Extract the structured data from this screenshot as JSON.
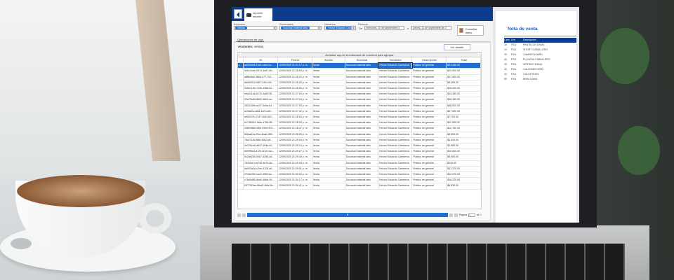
{
  "header": {
    "print_tab": "Imprimir reporte"
  },
  "filters": {
    "acciones": {
      "label": "Acciones",
      "chip": "Ventas"
    },
    "sucursales": {
      "label": "Sucursales",
      "chip": "Sucursal material labs"
    },
    "usuarios": {
      "label": "Usuarios",
      "chip": "Héctor Eduardo Cam"
    },
    "periodo": {
      "label": "Periodo",
      "from_label": "De",
      "from": "miércoles, 10 de septiembre d",
      "to_label": "a",
      "to": "jueves, 11 de septiembre de 2"
    },
    "consult_button": "Consultar datos"
  },
  "tab": "Operaciones de caja",
  "actions_label": "Acciones:",
  "actions_value": "ventas",
  "detail_button": "Ver detalle",
  "group_hint": "Arrastrar aquí el encabezado de columna para agrupar",
  "columns": [
    "ID",
    "Fecha",
    "Acción",
    "Sucursal",
    "Vendedor",
    "Descripción",
    "Total"
  ],
  "rows": [
    [
      "ad530d6f-47a4-4aee-bc...",
      "12/09/2025 21:24:17 p. m.",
      "Venta",
      "Sucursal material labs",
      "Héctor Eduardo Camberos",
      "Público en general",
      "$23,645.00"
    ],
    [
      "0e612cee-0974-4e67-8d...",
      "12/09/2025 21:26:03 p. m.",
      "Venta",
      "Sucursal material labs",
      "Héctor Eduardo Camberos",
      "Público en general",
      "$22,500.00"
    ],
    [
      "a8f6c6a9-386d-4777-91...",
      "12/09/2025 21:26:22 p. m.",
      "Venta",
      "Sucursal material labs",
      "Héctor Eduardo Camberos",
      "Público en general",
      "$17,500.00"
    ],
    [
      "66e83310-b8f7-430c-b8...",
      "12/09/2025 21:26:33 p. m.",
      "Venta",
      "Sucursal material labs",
      "Héctor Eduardo Camberos",
      "Público en general",
      "$8,499.20"
    ],
    [
      "2e9e1150-7236-4386-9a...",
      "12/09/2025 21:26:50 p. m.",
      "Venta",
      "Sucursal material labs",
      "Héctor Eduardo Camberos",
      "Público en general",
      "$19,000.00"
    ],
    [
      "e6a411a6-6176-4a80-98...",
      "12/09/2025 21:27:04 p. m.",
      "Venta",
      "Sucursal material labs",
      "Héctor Eduardo Camberos",
      "Público en general",
      "$14,350.00"
    ],
    [
      "32a75c8d-8642-4b04-ae...",
      "12/09/2025 21:27:14 p. m.",
      "Venta",
      "Sucursal material labs",
      "Héctor Eduardo Camberos",
      "Público en general",
      "$16,450.00"
    ],
    [
      "2831449b-ac07-4c5a-b4...",
      "12/09/2025 21:27:33 p. m.",
      "Venta",
      "Sucursal material labs",
      "Héctor Eduardo Camberos",
      "Público en general",
      "$48,000.00"
    ],
    [
      "a19a62a-a6f8-4ef9-b80...",
      "12/09/2025 21:27:42 p. m.",
      "Venta",
      "Sucursal material labs",
      "Héctor Eduardo Camberos",
      "Público en general",
      "$17,000.00"
    ],
    [
      "a9002f7e-2347-4fd0-857...",
      "12/09/2025 21:28:03 p. m.",
      "Venta",
      "Sucursal material labs",
      "Héctor Eduardo Camberos",
      "Público en general",
      "$7,700.00"
    ],
    [
      "b1738444-1d6b-478b-86...",
      "12/09/2025 21:28:33 p. m.",
      "Venta",
      "Sucursal material labs",
      "Héctor Eduardo Camberos",
      "Público en general",
      "$11,550.00"
    ],
    [
      "208e0889-0f6e-49b9-872...",
      "12/09/2025 21:28:47 p. m.",
      "Venta",
      "Sucursal material labs",
      "Héctor Eduardo Camberos",
      "Público en general",
      "$12,780.00"
    ],
    [
      "f65ba81a-2f1a-4ba8-955...",
      "12/09/2025 21:28:55 p. m.",
      "Venta",
      "Sucursal material labs",
      "Héctor Eduardo Camberos",
      "Público en general",
      "$9,500.00"
    ],
    [
      "78a71140-f66f-4062-b8...",
      "12/09/2025 21:29:04 p. m.",
      "Venta",
      "Sucursal material labs",
      "Héctor Eduardo Camberos",
      "Público en general",
      "$1,540.00"
    ],
    [
      "4e376ce5-a447-499a-b0...",
      "12/09/2025 21:29:14 p. m.",
      "Venta",
      "Sucursal material labs",
      "Héctor Eduardo Camberos",
      "Público en general",
      "$1,980.00"
    ],
    [
      "8099f5a4-a720-4f1e-b1a...",
      "12/09/2025 21:29:27 p. m.",
      "Venta",
      "Sucursal material labs",
      "Héctor Eduardo Camberos",
      "Público en general",
      "$10,600.00"
    ],
    [
      "9c2a6260-0b07-4256-a4...",
      "12/09/2025 21:29:34 p. m.",
      "Venta",
      "Sucursal material labs",
      "Héctor Eduardo Camberos",
      "Público en general",
      "$9,900.00"
    ],
    [
      "78330d74-b74d-4b7b-8a...",
      "12/09/2025 21:29:43 p. m.",
      "Venta",
      "Sucursal material labs",
      "Héctor Eduardo Camberos",
      "Público en general",
      "$225.00"
    ],
    [
      "6a903a3d-c2ee-4128-a6...",
      "12/09/2025 21:29:51 p. m.",
      "Venta",
      "Sucursal material labs",
      "Héctor Eduardo Camberos",
      "Público en general",
      "$13,375.00"
    ],
    [
      "2718e990-cac2-4552-be...",
      "12/09/2025 21:30:02 p. m.",
      "Venta",
      "Sucursal material labs",
      "Héctor Eduardo Camberos",
      "Público en general",
      "$10,975.00"
    ],
    [
      "c76d0d85-6ba0-48db-99...",
      "12/09/2025 21:30:17 p. m.",
      "Venta",
      "Sucursal material labs",
      "Héctor Eduardo Camberos",
      "Público en general",
      "$18,225.00"
    ],
    [
      "06779f3ae-f6ba2-4f6a-8a...",
      "12/09/2025 21:30:41 p. m.",
      "Venta",
      "Sucursal material labs",
      "Héctor Eduardo Camberos",
      "Público en general",
      "$6,830.00"
    ]
  ],
  "pager": {
    "page_label": "Página",
    "page": "1",
    "of_label": "de 1"
  },
  "report": {
    "title": "Nota de venta",
    "columns": [
      "Cant",
      "Uni",
      "Descripción"
    ],
    "rows": [
      [
        "16",
        "PZA",
        "PANTALON DAMA"
      ],
      [
        "10",
        "PZA",
        "SHORT CABALLERO"
      ],
      [
        "20",
        "PZA",
        "CAMISETA NIÑO"
      ],
      [
        "40",
        "PZA",
        "PLAYERA CABALLERO"
      ],
      [
        "25",
        "PZA",
        "VESTIDO DAMA"
      ],
      [
        "40",
        "PZA",
        "CALZONES NIÑO"
      ],
      [
        "32",
        "PZA",
        "CALCETINES"
      ],
      [
        "60",
        "PZA",
        "BRIM DAMA"
      ]
    ]
  },
  "colors": {
    "header": "#0d3c8c",
    "accent": "#1e6fd1"
  }
}
